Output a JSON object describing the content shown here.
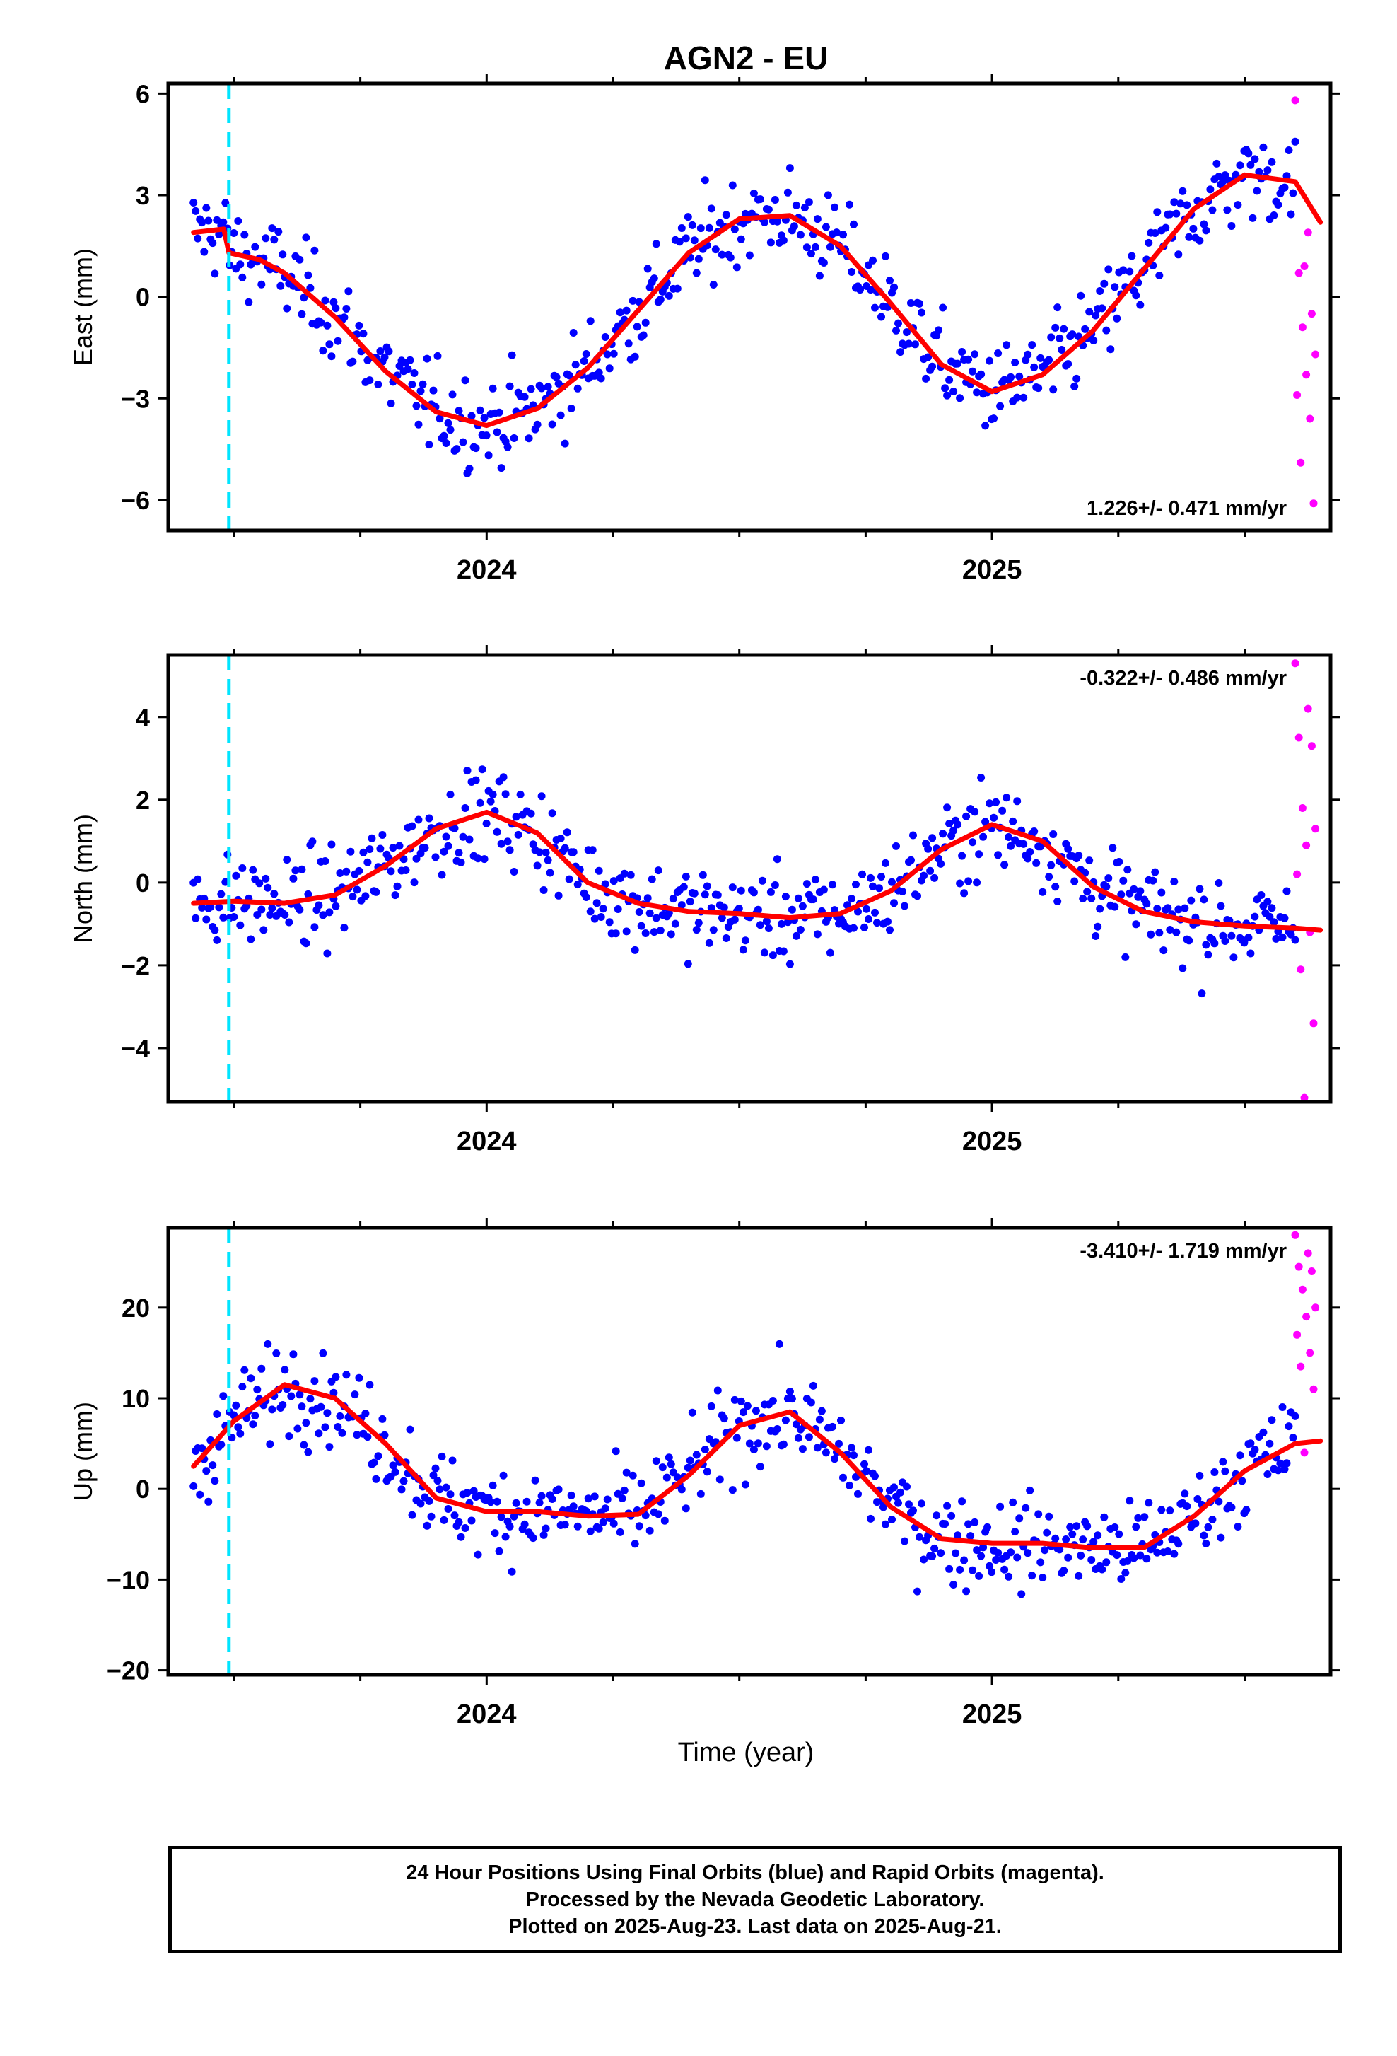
{
  "figure": {
    "title": "AGN2 - EU",
    "xlabel": "Time (year)",
    "footer": [
      "24 Hour Positions Using Final Orbits (blue) and Rapid Orbits (magenta).",
      "Processed by the Nevada Geodetic Laboratory.",
      "Plotted on 2025-Aug-23. Last data on 2025-Aug-21."
    ]
  },
  "colors": {
    "final_orbits": "#0000ff",
    "rapid_orbits": "#ff00ff",
    "model_fit": "#ff0000",
    "equipment_change": "#00e5ff"
  },
  "chart_data": [
    {
      "type": "scatter",
      "component": "east",
      "ylabel": "East (mm)",
      "rate_label": "1.226+/- 0.471 mm/yr",
      "xlim": [
        2023.37,
        2025.67
      ],
      "ylim": [
        -6.9,
        6.3
      ],
      "yticks": [
        -6,
        -3,
        0,
        3,
        6
      ],
      "xticks": [
        2024,
        2025
      ],
      "x_minor_ticks": [
        2023.5,
        2023.75,
        2024.25,
        2024.5,
        2024.75,
        2025.25,
        2025.5
      ],
      "equipment_change_x": 2023.49,
      "final_orbits_x": [
        2023.42,
        2025.6
      ],
      "rapid_orbits_x": [
        2025.6,
        2025.64
      ],
      "model_fit": {
        "x": [
          2023.42,
          2023.48,
          2023.49,
          2023.55,
          2023.6,
          2023.7,
          2023.8,
          2023.9,
          2024.0,
          2024.1,
          2024.2,
          2024.3,
          2024.4,
          2024.5,
          2024.6,
          2024.7,
          2024.8,
          2024.9,
          2025.0,
          2025.1,
          2025.2,
          2025.3,
          2025.4,
          2025.5,
          2025.6,
          2025.65
        ],
        "y": [
          1.9,
          2.0,
          1.3,
          1.1,
          0.7,
          -0.6,
          -2.2,
          -3.4,
          -3.8,
          -3.3,
          -2.1,
          -0.4,
          1.3,
          2.3,
          2.4,
          1.5,
          -0.2,
          -2.0,
          -2.8,
          -2.3,
          -1.0,
          0.8,
          2.6,
          3.6,
          3.4,
          2.2
        ]
      },
      "rapid_orbits_y": [
        5.8,
        1.9,
        0.7,
        -0.5,
        -0.9,
        -1.7,
        -2.3,
        -2.9,
        -3.6,
        -4.9,
        -6.1,
        0.9
      ]
    },
    {
      "type": "scatter",
      "component": "north",
      "ylabel": "North (mm)",
      "rate_label": "-0.322+/- 0.486 mm/yr",
      "xlim": [
        2023.37,
        2025.67
      ],
      "ylim": [
        -5.3,
        5.5
      ],
      "yticks": [
        -4,
        -2,
        0,
        2,
        4
      ],
      "xticks": [
        2024,
        2025
      ],
      "x_minor_ticks": [
        2023.5,
        2023.75,
        2024.25,
        2024.5,
        2024.75,
        2025.25,
        2025.5
      ],
      "equipment_change_x": 2023.49,
      "final_orbits_x": [
        2023.42,
        2025.6
      ],
      "rapid_orbits_x": [
        2025.6,
        2025.64
      ],
      "model_fit": {
        "x": [
          2023.42,
          2023.5,
          2023.6,
          2023.7,
          2023.8,
          2023.9,
          2024.0,
          2024.1,
          2024.2,
          2024.3,
          2024.4,
          2024.5,
          2024.6,
          2024.7,
          2024.8,
          2024.9,
          2025.0,
          2025.1,
          2025.2,
          2025.3,
          2025.4,
          2025.5,
          2025.6,
          2025.65
        ],
        "y": [
          -0.5,
          -0.45,
          -0.5,
          -0.3,
          0.4,
          1.3,
          1.7,
          1.2,
          0.0,
          -0.5,
          -0.7,
          -0.75,
          -0.85,
          -0.75,
          -0.2,
          0.8,
          1.4,
          1.0,
          -0.1,
          -0.7,
          -0.95,
          -1.05,
          -1.1,
          -1.15
        ]
      },
      "rapid_orbits_y": [
        5.3,
        4.2,
        3.5,
        3.3,
        1.8,
        1.3,
        0.9,
        0.2,
        -1.2,
        -2.1,
        -3.4,
        -5.2
      ]
    },
    {
      "type": "scatter",
      "component": "up",
      "ylabel": "Up (mm)",
      "rate_label": "-3.410+/- 1.719 mm/yr",
      "xlim": [
        2023.37,
        2025.67
      ],
      "ylim": [
        -20.5,
        28.8
      ],
      "yticks": [
        -20,
        -10,
        0,
        10,
        20
      ],
      "xticks": [
        2024,
        2025
      ],
      "x_minor_ticks": [
        2023.5,
        2023.75,
        2024.25,
        2024.5,
        2024.75,
        2025.25,
        2025.5
      ],
      "equipment_change_x": 2023.49,
      "final_orbits_x": [
        2023.42,
        2025.6
      ],
      "rapid_orbits_x": [
        2025.6,
        2025.64
      ],
      "model_fit": {
        "x": [
          2023.42,
          2023.5,
          2023.6,
          2023.7,
          2023.8,
          2023.9,
          2024.0,
          2024.1,
          2024.2,
          2024.3,
          2024.4,
          2024.5,
          2024.6,
          2024.7,
          2024.8,
          2024.9,
          2025.0,
          2025.1,
          2025.2,
          2025.3,
          2025.4,
          2025.5,
          2025.6,
          2025.65
        ],
        "y": [
          2.5,
          7.5,
          11.5,
          10.0,
          5.0,
          -1.0,
          -2.5,
          -2.5,
          -3.0,
          -2.8,
          1.5,
          7.0,
          8.5,
          4.0,
          -2.0,
          -5.5,
          -6.0,
          -6.0,
          -6.5,
          -6.5,
          -3.0,
          2.0,
          5.0,
          5.3
        ]
      },
      "rapid_orbits_y": [
        28,
        26,
        24.5,
        24,
        22,
        20,
        19,
        17,
        15,
        13.5,
        11,
        4
      ]
    }
  ]
}
